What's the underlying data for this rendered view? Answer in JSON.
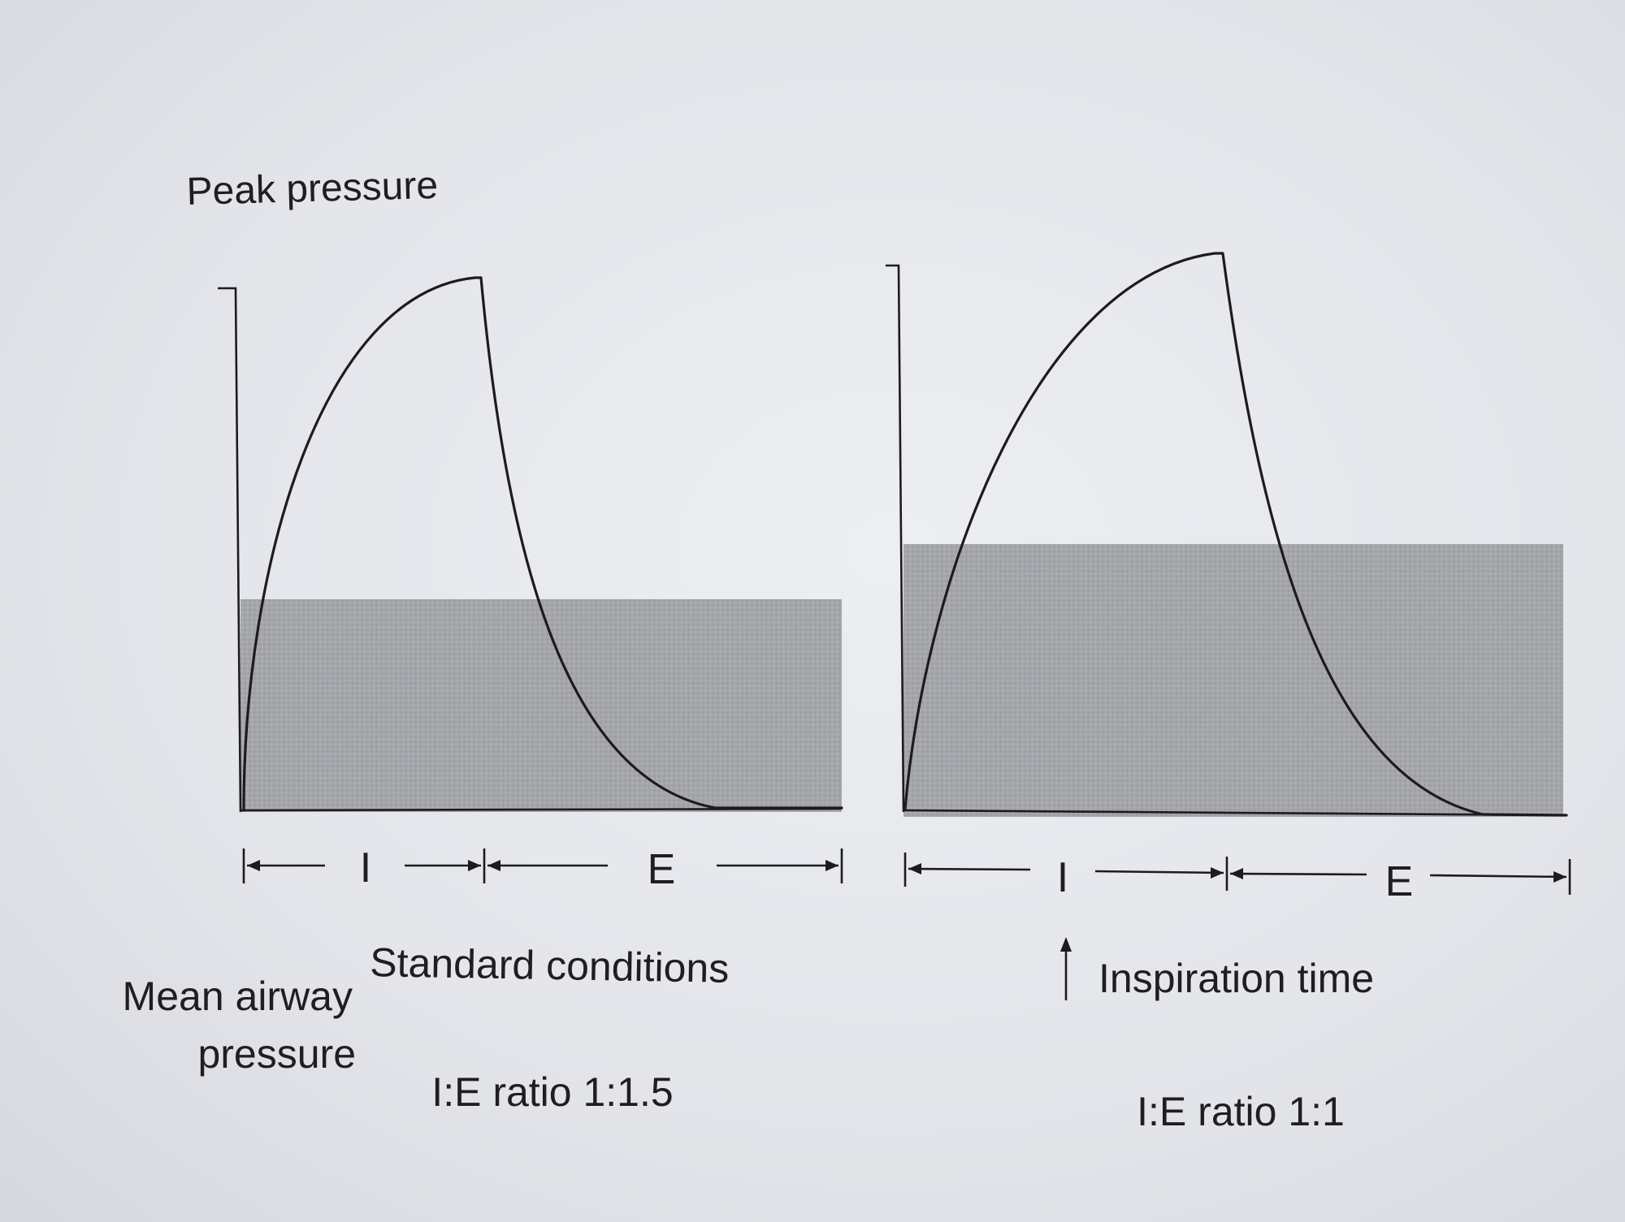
{
  "labels": {
    "peak_pressure": "Peak pressure",
    "mean_airway_line1": "Mean airway",
    "mean_airway_line2": "pressure",
    "inspiration_time": "Inspiration time"
  },
  "panels": [
    {
      "condition": "Standard conditions",
      "ratio_label": "I:E ratio 1:1.5",
      "inspiration_label": "I",
      "expiration_label": "E",
      "inspiration_share": 0.4,
      "mean_pressure_fraction": 0.4
    },
    {
      "condition": "",
      "ratio_label": "I:E ratio 1:1",
      "inspiration_label": "I",
      "expiration_label": "E",
      "inspiration_share": 0.5,
      "mean_pressure_fraction": 0.5
    }
  ],
  "colors": {
    "shade": "#a3a5aa",
    "ink": "#1c1c1c",
    "paper": "#e4e6eb"
  }
}
